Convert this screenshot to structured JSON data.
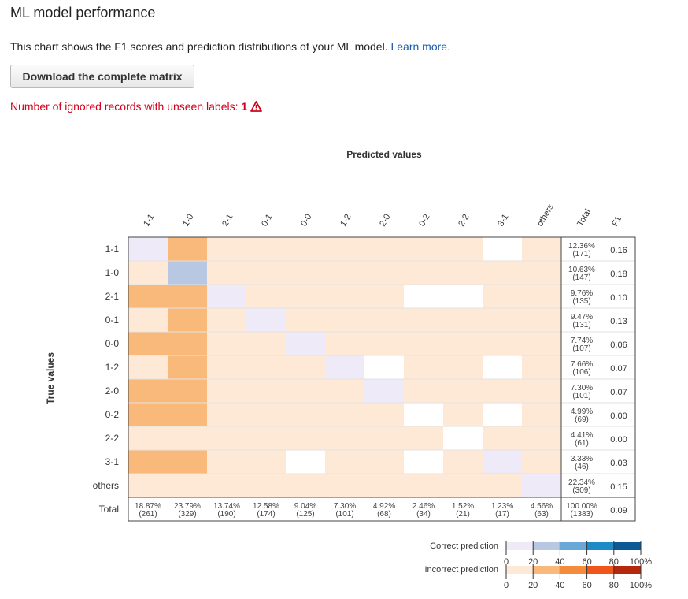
{
  "header": {
    "title": "ML model performance",
    "description": "This chart shows the F1 scores and prediction distributions of your ML model.",
    "learn_more": "Learn more.",
    "download_label": "Download the complete matrix",
    "ignored_text": "Number of ignored records with unseen labels:",
    "ignored_count": "1",
    "warning_icon": "warning-triangle-icon"
  },
  "chart_data": {
    "type": "heatmap",
    "title": "",
    "xlabel": "Predicted values",
    "ylabel": "True values",
    "predicted_labels": [
      "1-1",
      "1-0",
      "2-1",
      "0-1",
      "0-0",
      "1-2",
      "2-0",
      "0-2",
      "2-2",
      "3-1",
      "others"
    ],
    "true_labels": [
      "1-1",
      "1-0",
      "2-1",
      "0-1",
      "0-0",
      "1-2",
      "2-0",
      "0-2",
      "2-2",
      "3-1",
      "others"
    ],
    "total_header": "Total",
    "f1_header": "F1",
    "total_row_label": "Total",
    "row_totals": [
      {
        "pct": "12.36%",
        "count": "(171)",
        "f1": "0.16"
      },
      {
        "pct": "10.63%",
        "count": "(147)",
        "f1": "0.18"
      },
      {
        "pct": "9.76%",
        "count": "(135)",
        "f1": "0.10"
      },
      {
        "pct": "9.47%",
        "count": "(131)",
        "f1": "0.13"
      },
      {
        "pct": "7.74%",
        "count": "(107)",
        "f1": "0.06"
      },
      {
        "pct": "7.66%",
        "count": "(106)",
        "f1": "0.07"
      },
      {
        "pct": "7.30%",
        "count": "(101)",
        "f1": "0.07"
      },
      {
        "pct": "4.99%",
        "count": "(69)",
        "f1": "0.00"
      },
      {
        "pct": "4.41%",
        "count": "(61)",
        "f1": "0.00"
      },
      {
        "pct": "3.33%",
        "count": "(46)",
        "f1": "0.03"
      },
      {
        "pct": "22.34%",
        "count": "(309)",
        "f1": "0.15"
      }
    ],
    "col_totals": [
      {
        "pct": "18.87%",
        "count": "(261)"
      },
      {
        "pct": "23.79%",
        "count": "(329)"
      },
      {
        "pct": "13.74%",
        "count": "(190)"
      },
      {
        "pct": "12.58%",
        "count": "(174)"
      },
      {
        "pct": "9.04%",
        "count": "(125)"
      },
      {
        "pct": "7.30%",
        "count": "(101)"
      },
      {
        "pct": "4.92%",
        "count": "(68)"
      },
      {
        "pct": "2.46%",
        "count": "(34)"
      },
      {
        "pct": "1.52%",
        "count": "(21)"
      },
      {
        "pct": "1.23%",
        "count": "(17)"
      },
      {
        "pct": "4.56%",
        "count": "(63)"
      }
    ],
    "grand_total": {
      "pct": "100.00%",
      "count": "(1383)",
      "f1": "0.09"
    },
    "cell_levels": [
      [
        "c1",
        "i2",
        "i1",
        "i1",
        "i1",
        "i1",
        "i1",
        "i1",
        "i1",
        "w",
        "i1"
      ],
      [
        "i1",
        "c2",
        "i1",
        "i1",
        "i1",
        "i1",
        "i1",
        "i1",
        "i1",
        "i1",
        "i1"
      ],
      [
        "i2",
        "i2",
        "c1",
        "i1",
        "i1",
        "i1",
        "i1",
        "w",
        "w",
        "i1",
        "i1"
      ],
      [
        "i1",
        "i2",
        "i1",
        "c1",
        "i1",
        "i1",
        "i1",
        "i1",
        "i1",
        "i1",
        "i1"
      ],
      [
        "i2",
        "i2",
        "i1",
        "i1",
        "c1",
        "i1",
        "i1",
        "i1",
        "i1",
        "i1",
        "i1"
      ],
      [
        "i1",
        "i2",
        "i1",
        "i1",
        "i1",
        "c1",
        "w",
        "i1",
        "i1",
        "w",
        "i1"
      ],
      [
        "i2",
        "i2",
        "i1",
        "i1",
        "i1",
        "i1",
        "c1",
        "i1",
        "i1",
        "i1",
        "i1"
      ],
      [
        "i2",
        "i2",
        "i1",
        "i1",
        "i1",
        "i1",
        "i1",
        "w",
        "i1",
        "w",
        "i1"
      ],
      [
        "i1",
        "i1",
        "i1",
        "i1",
        "i1",
        "i1",
        "i1",
        "i1",
        "w",
        "i1",
        "i1"
      ],
      [
        "i2",
        "i2",
        "i1",
        "i1",
        "w",
        "i1",
        "i1",
        "w",
        "i1",
        "c1",
        "i1"
      ],
      [
        "i1",
        "i1",
        "i1",
        "i1",
        "i1",
        "i1",
        "i1",
        "i1",
        "i1",
        "i1",
        "c1"
      ]
    ],
    "legend": {
      "correct_label": "Correct prediction",
      "incorrect_label": "Incorrect prediction",
      "ticks": [
        "0",
        "20",
        "40",
        "60",
        "80",
        "100%"
      ],
      "correct_colors": [
        "#efeaf7",
        "#b8c7e2",
        "#6aa8d8",
        "#1c8bc7",
        "#0b5a96"
      ],
      "incorrect_colors": [
        "#fde9d5",
        "#f9b97a",
        "#f58b3c",
        "#f0561a",
        "#b5280e"
      ]
    },
    "colors": {
      "c1": "#efeaf7",
      "c2": "#b8c7e2",
      "i1": "#fde9d5",
      "i2": "#f9b97a",
      "w": "#ffffff"
    }
  }
}
